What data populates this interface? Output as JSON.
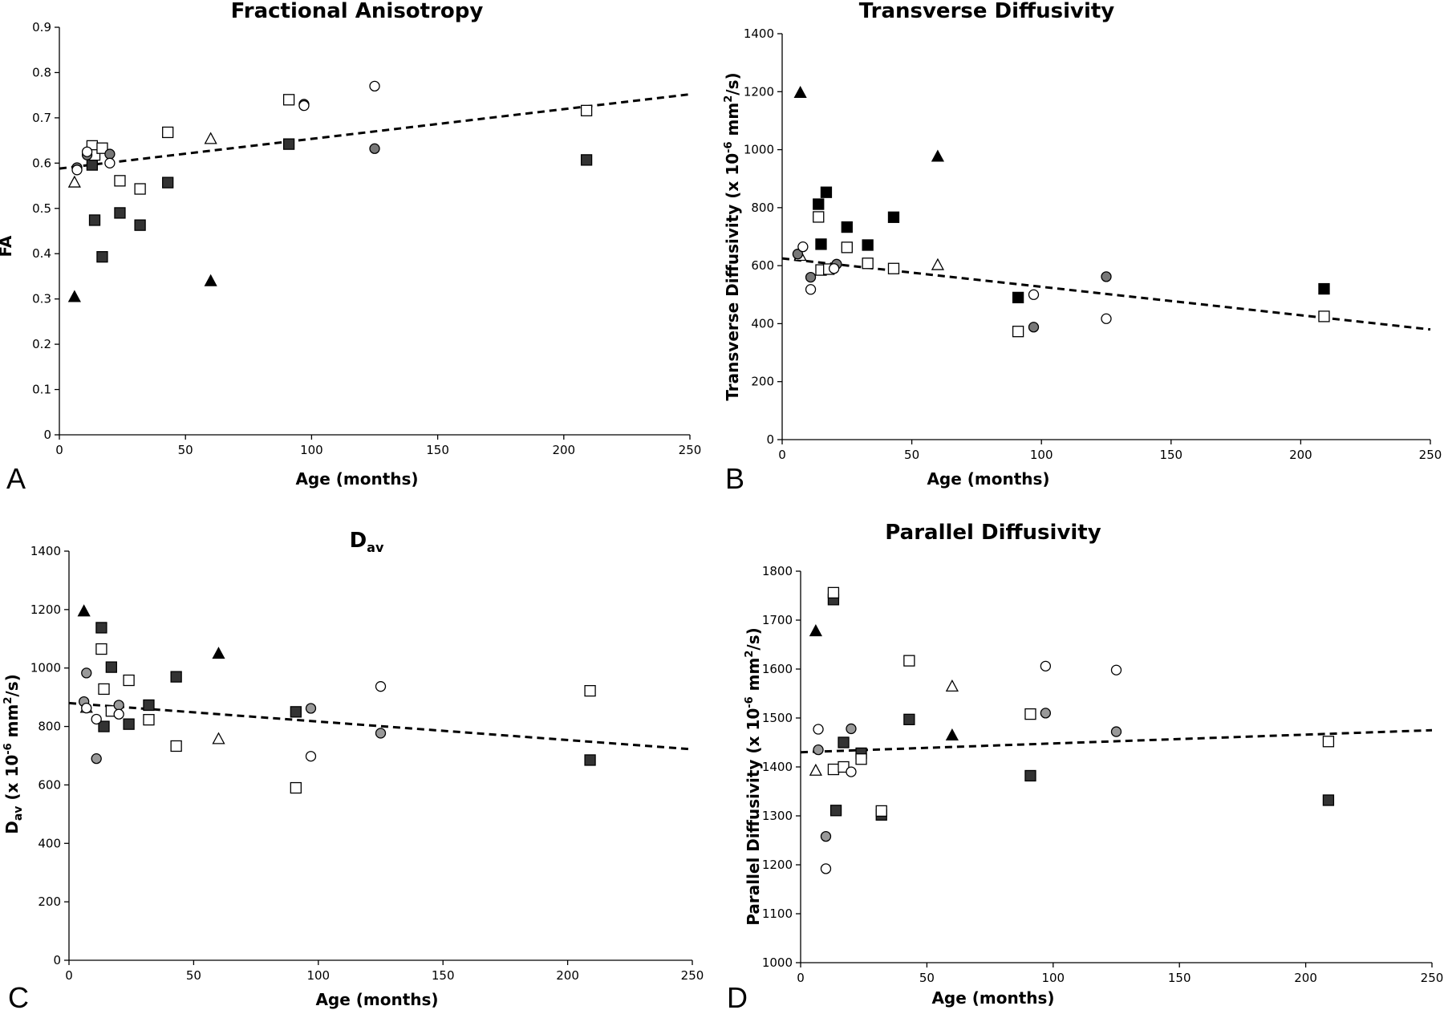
{
  "colors": {
    "black": "#000000",
    "dark_gray": "#333333",
    "mid_gray": "#777777",
    "light_gray": "#999999",
    "white": "#ffffff"
  },
  "chart_data": [
    {
      "id": "A",
      "type": "scatter",
      "panel_letter": "A",
      "title": "Fractional Anisotropy",
      "title_sub": "",
      "xlabel": "Age (months)",
      "ylabel": "FA",
      "ylabel_sub": "",
      "ylabel_rest": "",
      "xlim": [
        0,
        250
      ],
      "ylim": [
        0,
        0.9
      ],
      "xticks": [
        0,
        50,
        100,
        150,
        200,
        250
      ],
      "yticks": [
        0,
        0.1,
        0.2,
        0.3,
        0.4,
        0.5,
        0.6,
        0.7,
        0.8,
        0.9
      ],
      "ytick_labels": [
        "0",
        "0.1",
        "0.2",
        "0.3",
        "0.4",
        "0.5",
        "0.6",
        "0.7",
        "0.8",
        "0.9"
      ],
      "trendline": [
        [
          0,
          0.588
        ],
        [
          250,
          0.752
        ]
      ],
      "grid": false,
      "series": [
        {
          "marker": "triangle",
          "fill": "#000000",
          "points": [
            [
              6,
              0.305
            ],
            [
              60,
              0.34
            ]
          ]
        },
        {
          "marker": "triangle",
          "fill": "#ffffff",
          "points": [
            [
              6,
              0.558
            ],
            [
              60,
              0.654
            ]
          ]
        },
        {
          "marker": "square",
          "fill": "#333333",
          "points": [
            [
              13,
              0.596
            ],
            [
              14,
              0.474
            ],
            [
              17,
              0.393
            ],
            [
              24,
              0.49
            ],
            [
              32,
              0.463
            ],
            [
              43,
              0.557
            ],
            [
              91,
              0.642
            ],
            [
              209,
              0.607
            ]
          ]
        },
        {
          "marker": "square",
          "fill": "#ffffff",
          "points": [
            [
              13,
              0.638
            ],
            [
              14,
              0.618
            ],
            [
              17,
              0.633
            ],
            [
              24,
              0.561
            ],
            [
              32,
              0.543
            ],
            [
              43,
              0.668
            ],
            [
              91,
              0.74
            ],
            [
              209,
              0.716
            ]
          ]
        },
        {
          "marker": "circle",
          "fill": "#777777",
          "points": [
            [
              7,
              0.59
            ],
            [
              11,
              0.618
            ],
            [
              20,
              0.62
            ],
            [
              97,
              0.73
            ],
            [
              125,
              0.632
            ]
          ]
        },
        {
          "marker": "circle",
          "fill": "#ffffff",
          "points": [
            [
              7,
              0.585
            ],
            [
              11,
              0.625
            ],
            [
              20,
              0.6
            ],
            [
              97,
              0.727
            ],
            [
              125,
              0.77
            ]
          ]
        }
      ]
    },
    {
      "id": "B",
      "type": "scatter",
      "panel_letter": "B",
      "title": "Transverse Diffusivity",
      "title_sub": "",
      "xlabel": "Age (months)",
      "ylabel": "Transverse Diffusivity (x 10",
      "ylabel_sup": "-6",
      "ylabel_mid": " mm",
      "ylabel_sup2": "2",
      "ylabel_end": "/s)",
      "xlim": [
        0,
        250
      ],
      "ylim": [
        0,
        1400
      ],
      "xticks": [
        0,
        50,
        100,
        150,
        200,
        250
      ],
      "yticks": [
        0,
        200,
        400,
        600,
        800,
        1000,
        1200,
        1400
      ],
      "ytick_labels": [
        "0",
        "200",
        "400",
        "600",
        "800",
        "1000",
        "1200",
        "1400"
      ],
      "trendline": [
        [
          0,
          625
        ],
        [
          250,
          380
        ]
      ],
      "grid": false,
      "series": [
        {
          "marker": "triangle",
          "fill": "#000000",
          "points": [
            [
              7,
              1197
            ],
            [
              60,
              977
            ]
          ]
        },
        {
          "marker": "triangle",
          "fill": "#ffffff",
          "points": [
            [
              7,
              635
            ],
            [
              60,
              603
            ]
          ]
        },
        {
          "marker": "square",
          "fill": "#000000",
          "points": [
            [
              14,
              812
            ],
            [
              17,
              853
            ],
            [
              15,
              674
            ],
            [
              25,
              733
            ],
            [
              33,
              671
            ],
            [
              43,
              767
            ],
            [
              91,
              490
            ],
            [
              209,
              520
            ]
          ]
        },
        {
          "marker": "square",
          "fill": "#ffffff",
          "points": [
            [
              14,
              768
            ],
            [
              15,
              585
            ],
            [
              18,
              588
            ],
            [
              25,
              663
            ],
            [
              33,
              608
            ],
            [
              43,
              590
            ],
            [
              91,
              373
            ],
            [
              209,
              425
            ]
          ]
        },
        {
          "marker": "circle",
          "fill": "#777777",
          "points": [
            [
              6,
              640
            ],
            [
              11,
              560
            ],
            [
              21,
              605
            ],
            [
              97,
              388
            ],
            [
              125,
              562
            ]
          ]
        },
        {
          "marker": "circle",
          "fill": "#ffffff",
          "points": [
            [
              8,
              665
            ],
            [
              11,
              518
            ],
            [
              20,
              590
            ],
            [
              97,
              500
            ],
            [
              125,
              417
            ]
          ]
        }
      ]
    },
    {
      "id": "C",
      "type": "scatter",
      "panel_letter": "C",
      "title": "D",
      "title_sub": "av",
      "xlabel": "Age (months)",
      "ylabel": "D",
      "ylabel_sub": "av",
      "ylabel_rest": " (x 10",
      "ylabel_sup": "-6",
      "ylabel_mid": " mm",
      "ylabel_sup2": "2",
      "ylabel_end": "/s)",
      "xlim": [
        0,
        250
      ],
      "ylim": [
        0,
        1400
      ],
      "xticks": [
        0,
        50,
        100,
        150,
        200,
        250
      ],
      "yticks": [
        0,
        200,
        400,
        600,
        800,
        1000,
        1200,
        1400
      ],
      "ytick_labels": [
        "0",
        "200",
        "400",
        "600",
        "800",
        "1000",
        "1200",
        "1400"
      ],
      "trendline": [
        [
          0,
          880
        ],
        [
          250,
          722
        ]
      ],
      "grid": false,
      "series": [
        {
          "marker": "triangle",
          "fill": "#000000",
          "points": [
            [
              6,
              1195
            ],
            [
              60,
              1050
            ]
          ]
        },
        {
          "marker": "triangle",
          "fill": "#ffffff",
          "points": [
            [
              7,
              865
            ],
            [
              60,
              758
            ]
          ]
        },
        {
          "marker": "square",
          "fill": "#333333",
          "points": [
            [
              13,
              1138
            ],
            [
              17,
              1003
            ],
            [
              14,
              800
            ],
            [
              24,
              808
            ],
            [
              32,
              873
            ],
            [
              43,
              970
            ],
            [
              91,
              850
            ],
            [
              209,
              685
            ]
          ]
        },
        {
          "marker": "square",
          "fill": "#ffffff",
          "points": [
            [
              13,
              1065
            ],
            [
              14,
              928
            ],
            [
              17,
              853
            ],
            [
              24,
              958
            ],
            [
              32,
              823
            ],
            [
              43,
              733
            ],
            [
              91,
              590
            ],
            [
              209,
              922
            ]
          ]
        },
        {
          "marker": "circle",
          "fill": "#999999",
          "points": [
            [
              6,
              885
            ],
            [
              7,
              983
            ],
            [
              11,
              690
            ],
            [
              20,
              873
            ],
            [
              97,
              862
            ],
            [
              125,
              777
            ]
          ]
        },
        {
          "marker": "circle",
          "fill": "#ffffff",
          "points": [
            [
              7,
              863
            ],
            [
              11,
              825
            ],
            [
              20,
              842
            ],
            [
              97,
              698
            ],
            [
              125,
              937
            ]
          ]
        }
      ]
    },
    {
      "id": "D",
      "type": "scatter",
      "panel_letter": "D",
      "title": "Parallel Diffusivity",
      "title_sub": "",
      "xlabel": "Age (months)",
      "ylabel": "Parallel Diffusivity (x 10",
      "ylabel_sup": "-6",
      "ylabel_mid": " mm",
      "ylabel_sup2": "2",
      "ylabel_end": "/s)",
      "xlim": [
        0,
        250
      ],
      "ylim": [
        1000,
        1800
      ],
      "xticks": [
        0,
        50,
        100,
        150,
        200,
        250
      ],
      "yticks": [
        1000,
        1100,
        1200,
        1300,
        1400,
        1500,
        1600,
        1700,
        1800
      ],
      "ytick_labels": [
        "1000",
        "1100",
        "1200",
        "1300",
        "1400",
        "1500",
        "1600",
        "1700",
        "1800"
      ],
      "trendline": [
        [
          0,
          1430
        ],
        [
          250,
          1475
        ]
      ],
      "grid": false,
      "series": [
        {
          "marker": "triangle",
          "fill": "#000000",
          "points": [
            [
              6,
              1678
            ],
            [
              60,
              1465
            ]
          ]
        },
        {
          "marker": "triangle",
          "fill": "#ffffff",
          "points": [
            [
              6,
              1393
            ],
            [
              60,
              1565
            ]
          ]
        },
        {
          "marker": "square",
          "fill": "#333333",
          "points": [
            [
              13,
              1742
            ],
            [
              14,
              1311
            ],
            [
              17,
              1450
            ],
            [
              24,
              1428
            ],
            [
              32,
              1302
            ],
            [
              43,
              1497
            ],
            [
              91,
              1382
            ],
            [
              209,
              1332
            ]
          ]
        },
        {
          "marker": "square",
          "fill": "#ffffff",
          "points": [
            [
              13,
              1756
            ],
            [
              13,
              1395
            ],
            [
              17,
              1400
            ],
            [
              24,
              1416
            ],
            [
              32,
              1310
            ],
            [
              43,
              1617
            ],
            [
              91,
              1508
            ],
            [
              209,
              1452
            ]
          ]
        },
        {
          "marker": "circle",
          "fill": "#999999",
          "points": [
            [
              7,
              1435
            ],
            [
              10,
              1258
            ],
            [
              20,
              1478
            ],
            [
              97,
              1510
            ],
            [
              125,
              1472
            ]
          ]
        },
        {
          "marker": "circle",
          "fill": "#ffffff",
          "points": [
            [
              7,
              1477
            ],
            [
              10,
              1192
            ],
            [
              20,
              1390
            ],
            [
              97,
              1606
            ],
            [
              125,
              1598
            ]
          ]
        }
      ]
    }
  ]
}
